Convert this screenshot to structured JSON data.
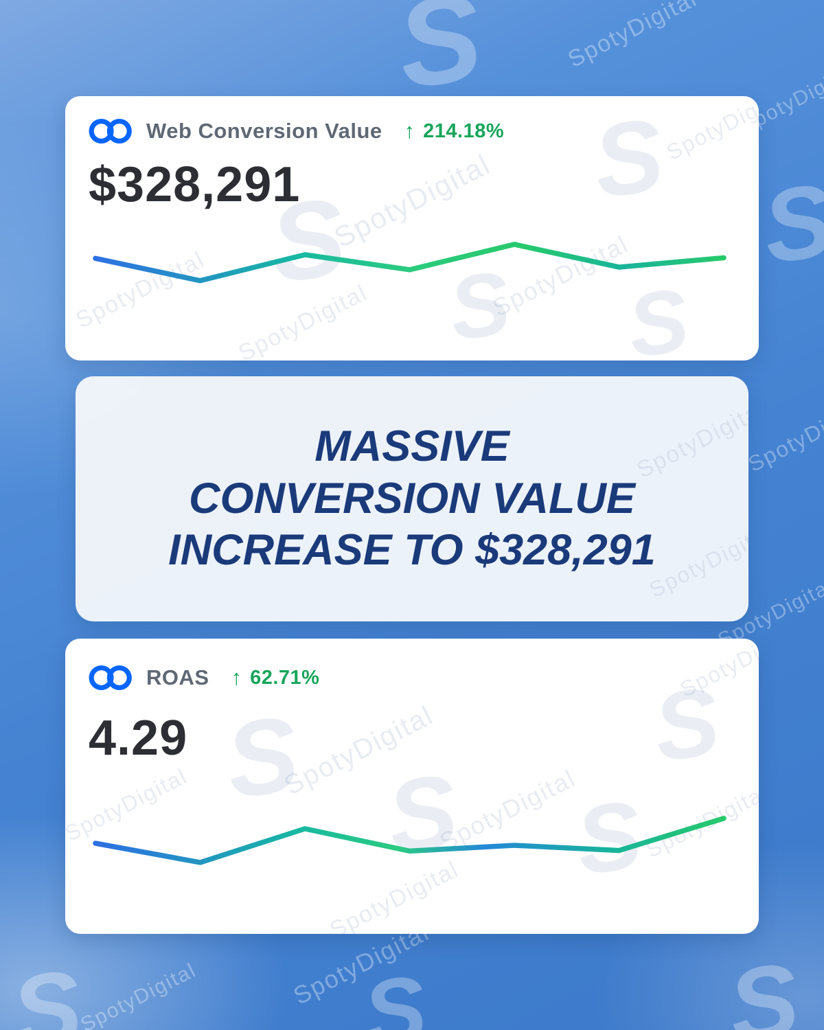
{
  "watermark": {
    "brand": "SpotyDigital",
    "monogram": "S"
  },
  "top_card": {
    "icon": "meta-infinity-icon",
    "label": "Web Conversion Value",
    "arrow": "↑",
    "change": "214.18%",
    "value": "$328,291"
  },
  "banner": {
    "line1": "MASSIVE",
    "line2": "CONVERSION VALUE",
    "line3": "INCREASE TO $328,291"
  },
  "bottom_card": {
    "icon": "meta-infinity-icon",
    "label": "ROAS",
    "arrow": "↑",
    "change": "62.71%",
    "value": "4.29"
  },
  "colors": {
    "meta_blue": "#0866FF",
    "positive_green": "#17A55A",
    "banner_navy": "#1A3A7A",
    "value_dark": "#2C2E33",
    "label_gray": "#5F6874",
    "spark_blue": "#2E6FE3",
    "spark_teal": "#17B8A2",
    "spark_green": "#27C96B",
    "sky_blue": "#4583D2"
  },
  "chart_data": [
    {
      "type": "line",
      "name": "web-conversion-value-sparkline",
      "x": [
        1,
        2,
        3,
        4,
        5,
        6,
        7
      ],
      "values": [
        55,
        12,
        62,
        33,
        82,
        38,
        56
      ],
      "ylim": [
        0,
        100
      ],
      "title": "",
      "xlabel": "",
      "ylabel": "",
      "grid": false,
      "legend": "none",
      "style": "smooth gradient stroke blue-to-green, no axes, sparkline"
    },
    {
      "type": "line",
      "name": "roas-sparkline",
      "x": [
        1,
        2,
        3,
        4,
        5,
        6,
        7
      ],
      "values": [
        42,
        5,
        70,
        27,
        38,
        28,
        90
      ],
      "ylim": [
        0,
        100
      ],
      "title": "",
      "xlabel": "",
      "ylabel": "",
      "grid": false,
      "legend": "none",
      "style": "smooth gradient stroke blue-to-green, no axes, sparkline"
    }
  ]
}
